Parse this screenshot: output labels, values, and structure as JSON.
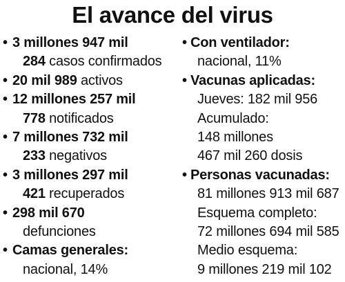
{
  "title": "El avance del virus",
  "bullet": "•",
  "left": {
    "casos": {
      "bold1": "3 millones 947 mil",
      "bold2": "284",
      "text": " casos confirmados"
    },
    "activos": {
      "bold": "20 mil 989",
      "text": " activos"
    },
    "notificados": {
      "bold1": "12 millones 257 mil",
      "bold2": "778",
      "text": " notificados"
    },
    "negativos": {
      "bold1": "7 millones 732 mil",
      "bold2": "233",
      "text": " negativos"
    },
    "recuperados": {
      "bold1": "3 millones 297 mil",
      "bold2": "421",
      "text": " recuperados"
    },
    "defunciones": {
      "bold": "298 mil 670",
      "text": "defunciones"
    },
    "camas": {
      "bold": "Camas generales:",
      "text": "nacional, 14%"
    }
  },
  "right": {
    "ventilador": {
      "bold": "Con ventilador:",
      "text": "nacional, 11%"
    },
    "vacunas": {
      "bold": "Vacunas aplicadas:",
      "lines": [
        "Jueves: 182 mil 956",
        "Acumulado:",
        "148 millones",
        "467 mil 260 dosis"
      ]
    },
    "personas": {
      "bold": "Personas vacunadas:",
      "lines": [
        "81 millones 913 mil 687",
        "Esquema completo:",
        "72 millones 694 mil 585",
        "Medio esquema:",
        "9 millones 219 mil 102"
      ]
    }
  }
}
